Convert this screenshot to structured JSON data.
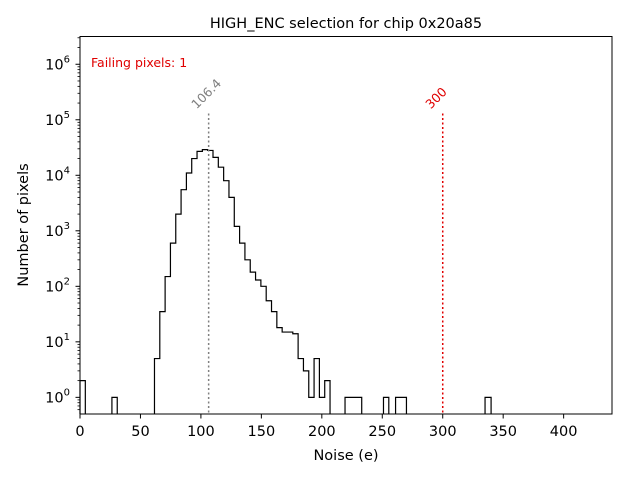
{
  "chart_data": {
    "type": "histogram",
    "title": "HIGH_ENC selection for chip 0x20a85",
    "xlabel": "Noise (e)",
    "ylabel": "Number of pixels",
    "xlim": [
      0,
      440
    ],
    "ylim_log10": [
      -0.3,
      6.5
    ],
    "y_scale": "log",
    "x_ticks": [
      0,
      50,
      100,
      150,
      200,
      250,
      300,
      350,
      400
    ],
    "x_tick_labels": [
      "0",
      "50",
      "100",
      "150",
      "200",
      "250",
      "300",
      "350",
      "400"
    ],
    "y_ticks_log10": [
      0,
      1,
      2,
      3,
      4,
      5,
      6
    ],
    "y_tick_base": "10",
    "y_tick_exponents": [
      "0",
      "1",
      "2",
      "3",
      "4",
      "5",
      "6"
    ],
    "bin_width": 4.4,
    "bins": [
      {
        "x0": 0,
        "x1": 4.4,
        "count": 2
      },
      {
        "x0": 26.4,
        "x1": 30.8,
        "count": 1
      },
      {
        "x0": 61.6,
        "x1": 66.0,
        "count": 5
      },
      {
        "x0": 66.0,
        "x1": 70.4,
        "count": 35
      },
      {
        "x0": 70.4,
        "x1": 74.8,
        "count": 150
      },
      {
        "x0": 74.8,
        "x1": 79.2,
        "count": 600
      },
      {
        "x0": 79.2,
        "x1": 83.6,
        "count": 2000
      },
      {
        "x0": 83.6,
        "x1": 88.0,
        "count": 5500
      },
      {
        "x0": 88.0,
        "x1": 92.4,
        "count": 11000
      },
      {
        "x0": 92.4,
        "x1": 96.8,
        "count": 20000
      },
      {
        "x0": 96.8,
        "x1": 101.2,
        "count": 27000
      },
      {
        "x0": 101.2,
        "x1": 105.6,
        "count": 29000
      },
      {
        "x0": 105.6,
        "x1": 110.0,
        "count": 28000
      },
      {
        "x0": 110.0,
        "x1": 114.4,
        "count": 21000
      },
      {
        "x0": 114.4,
        "x1": 118.8,
        "count": 14000
      },
      {
        "x0": 118.8,
        "x1": 123.2,
        "count": 8000
      },
      {
        "x0": 123.2,
        "x1": 127.6,
        "count": 4000
      },
      {
        "x0": 127.6,
        "x1": 132.0,
        "count": 1200
      },
      {
        "x0": 132.0,
        "x1": 136.4,
        "count": 600
      },
      {
        "x0": 136.4,
        "x1": 140.8,
        "count": 300
      },
      {
        "x0": 140.8,
        "x1": 145.2,
        "count": 180
      },
      {
        "x0": 145.2,
        "x1": 149.6,
        "count": 130
      },
      {
        "x0": 149.6,
        "x1": 154.0,
        "count": 100
      },
      {
        "x0": 154.0,
        "x1": 158.4,
        "count": 55
      },
      {
        "x0": 158.4,
        "x1": 162.8,
        "count": 35
      },
      {
        "x0": 162.8,
        "x1": 167.2,
        "count": 18
      },
      {
        "x0": 167.2,
        "x1": 171.6,
        "count": 15
      },
      {
        "x0": 171.6,
        "x1": 176.0,
        "count": 15
      },
      {
        "x0": 176.0,
        "x1": 180.4,
        "count": 14
      },
      {
        "x0": 180.4,
        "x1": 184.8,
        "count": 5
      },
      {
        "x0": 184.8,
        "x1": 189.2,
        "count": 3
      },
      {
        "x0": 189.2,
        "x1": 193.6,
        "count": 1
      },
      {
        "x0": 193.6,
        "x1": 198.0,
        "count": 5
      },
      {
        "x0": 198.0,
        "x1": 202.4,
        "count": 1
      },
      {
        "x0": 202.4,
        "x1": 206.8,
        "count": 2
      },
      {
        "x0": 219.2,
        "x1": 233.0,
        "count": 1
      },
      {
        "x0": 251.0,
        "x1": 255.4,
        "count": 1
      },
      {
        "x0": 261.0,
        "x1": 270.0,
        "count": 1
      },
      {
        "x0": 335.0,
        "x1": 340.0,
        "count": 1
      }
    ],
    "vlines": [
      {
        "x": 106.4,
        "label": "106.4",
        "color": "#808080"
      },
      {
        "x": 300,
        "label": "300",
        "color": "#e00000"
      }
    ],
    "annotation": {
      "text": "Failing pixels: 1",
      "color": "#e00000"
    },
    "colors": {
      "histogram": "#000000",
      "axes": "#000000",
      "text": "#000000"
    }
  }
}
